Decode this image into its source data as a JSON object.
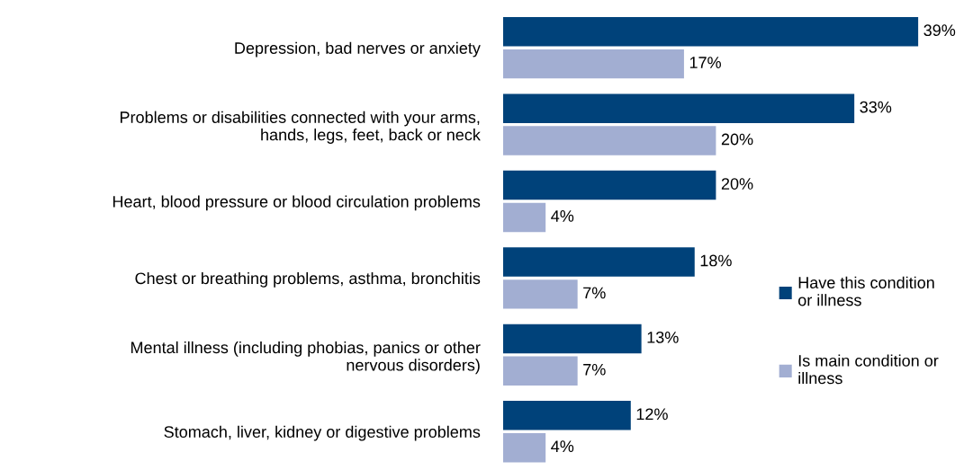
{
  "chart_data": {
    "type": "bar",
    "orientation": "horizontal",
    "categories": [
      "Depression, bad nerves or anxiety",
      "Problems or disabilities connected with your arms,\nhands, legs, feet, back or neck",
      "Heart, blood pressure or blood circulation problems",
      "Chest or breathing problems, asthma, bronchitis",
      "Mental illness (including phobias, panics or other\nnervous disorders)",
      "Stomach, liver, kidney or digestive problems"
    ],
    "series": [
      {
        "name": "Have this condition\nor illness",
        "color": "#00427a",
        "values": [
          39,
          33,
          20,
          18,
          13,
          12
        ],
        "value_labels": [
          "39%",
          "33%",
          "20%",
          "18%",
          "13%",
          "12%"
        ]
      },
      {
        "name": "Is main condition or\nillness",
        "color": "#a2aed2",
        "values": [
          17,
          20,
          4,
          7,
          7,
          4
        ],
        "value_labels": [
          "17%",
          "20%",
          "4%",
          "7%",
          "7%",
          "4%"
        ]
      }
    ],
    "legend": "right",
    "grid": false
  }
}
